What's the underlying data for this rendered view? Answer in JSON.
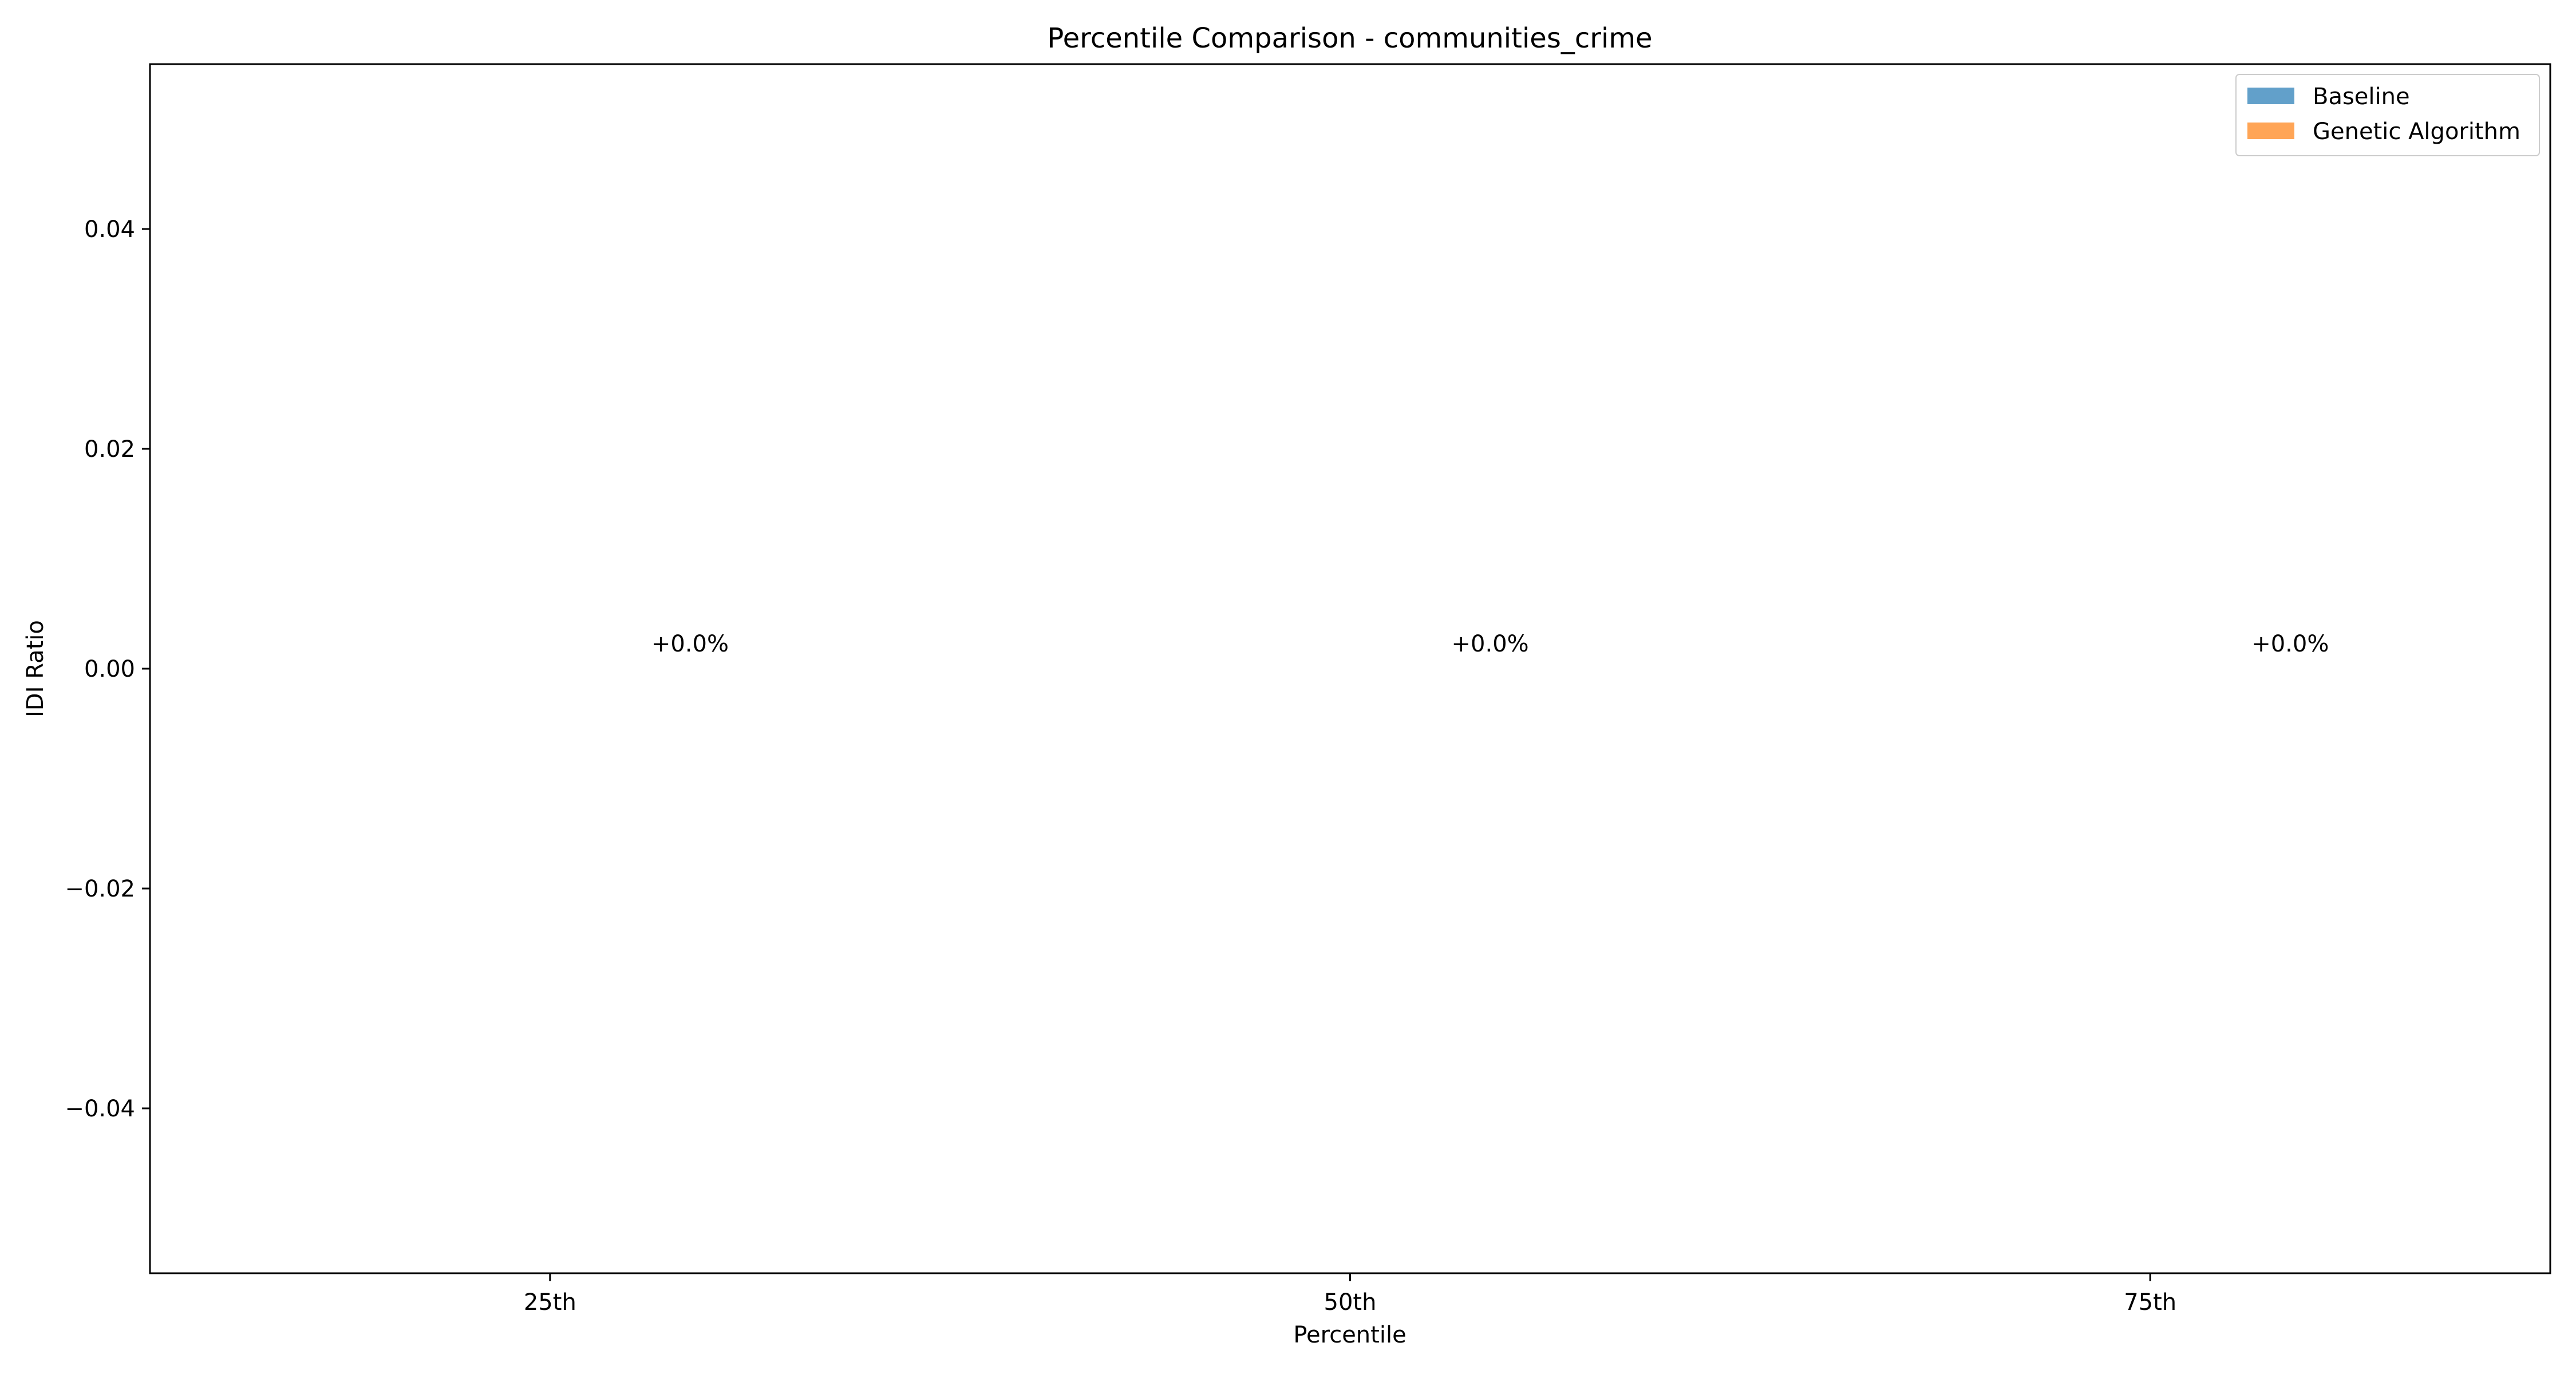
{
  "chart_data": {
    "type": "bar",
    "title": "Percentile Comparison - communities_crime",
    "xlabel": "Percentile",
    "ylabel": "IDI Ratio",
    "categories": [
      "25th",
      "50th",
      "75th"
    ],
    "series": [
      {
        "name": "Baseline",
        "color": "#1f77b4",
        "opacity": 0.7,
        "values": [
          0,
          0,
          0
        ]
      },
      {
        "name": "Genetic Algorithm",
        "color": "#ff7f0e",
        "opacity": 0.7,
        "values": [
          0,
          0,
          0
        ]
      }
    ],
    "annotations": [
      "+0.0%",
      "+0.0%",
      "+0.0%"
    ],
    "ylim": [
      -0.055,
      0.055
    ],
    "yticks": [
      -0.04,
      -0.02,
      0.0,
      0.02,
      0.04
    ],
    "ytick_labels": [
      "−0.04",
      "−0.02",
      "0.00",
      "0.02",
      "0.04"
    ],
    "grid": false,
    "legend_position": "top-right"
  }
}
